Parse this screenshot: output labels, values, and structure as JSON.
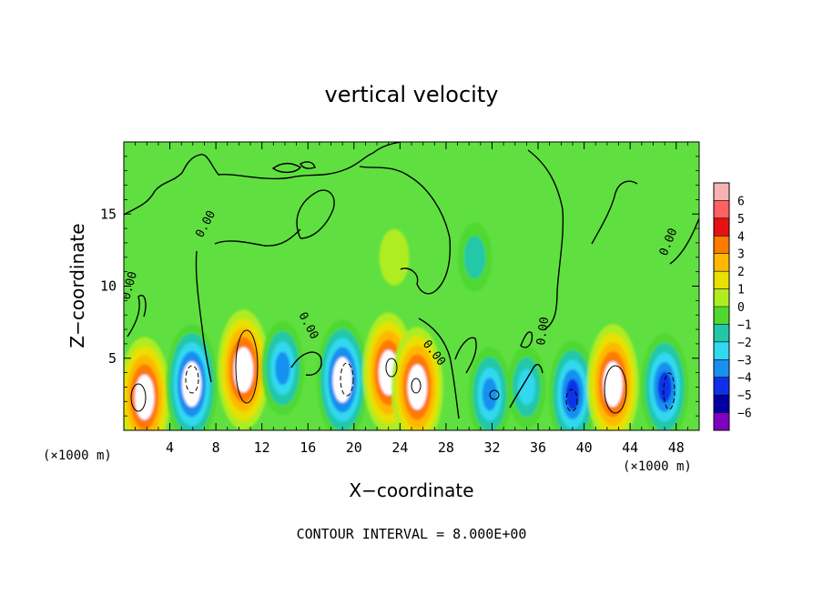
{
  "chart_data": {
    "type": "heatmap",
    "title": "vertical velocity",
    "xlabel": "X−coordinate",
    "ylabel": "Z−coordinate",
    "x_unit_label": "(×1000 m)",
    "y_unit_label": "(×1000 m)",
    "xlim": [
      0,
      50
    ],
    "ylim": [
      0,
      20
    ],
    "x_ticks": [
      4,
      8,
      12,
      16,
      20,
      24,
      28,
      32,
      36,
      40,
      44,
      48
    ],
    "y_ticks": [
      5,
      10,
      15
    ],
    "contour_interval_text": "CONTOUR INTERVAL = 8.000E+00",
    "contour_labels": [
      "0.00",
      "0.00",
      "0.00",
      "0.00",
      "0.00",
      "0.00"
    ],
    "colorbar": {
      "levels": [
        "6",
        "5",
        "4",
        "3",
        "2",
        "1",
        "0",
        "−1",
        "−2",
        "−3",
        "−4",
        "−5",
        "−6"
      ],
      "colors": [
        "#f7b3b3",
        "#ff6060",
        "#e81010",
        "#ff7a00",
        "#ffb800",
        "#e8e000",
        "#b0ec20",
        "#50d830",
        "#20c8a8",
        "#30d8f0",
        "#1890f0",
        "#1030e8",
        "#0000a0",
        "#8000c0"
      ]
    },
    "background_value_color": "#5fe040",
    "features": [
      {
        "x": 1.8,
        "z": 2.3,
        "w": 6
      },
      {
        "x": 5.9,
        "z": 3.2,
        "w": -6
      },
      {
        "x": 10.4,
        "z": 4.2,
        "w": 6
      },
      {
        "x": 13.8,
        "z": 4.3,
        "w": -4
      },
      {
        "x": 19.0,
        "z": 3.5,
        "w": -6
      },
      {
        "x": 23.0,
        "z": 4.0,
        "w": 6
      },
      {
        "x": 25.5,
        "z": 3.0,
        "w": 6
      },
      {
        "x": 31.8,
        "z": 2.5,
        "w": -4
      },
      {
        "x": 35.0,
        "z": 3.0,
        "w": -3
      },
      {
        "x": 39.0,
        "z": 2.5,
        "w": -5
      },
      {
        "x": 42.5,
        "z": 3.2,
        "w": 6
      },
      {
        "x": 47.0,
        "z": 3.0,
        "w": -5
      },
      {
        "x": 30.5,
        "z": 12.0,
        "w": -2
      },
      {
        "x": 23.5,
        "z": 12.0,
        "w": 1
      }
    ]
  }
}
